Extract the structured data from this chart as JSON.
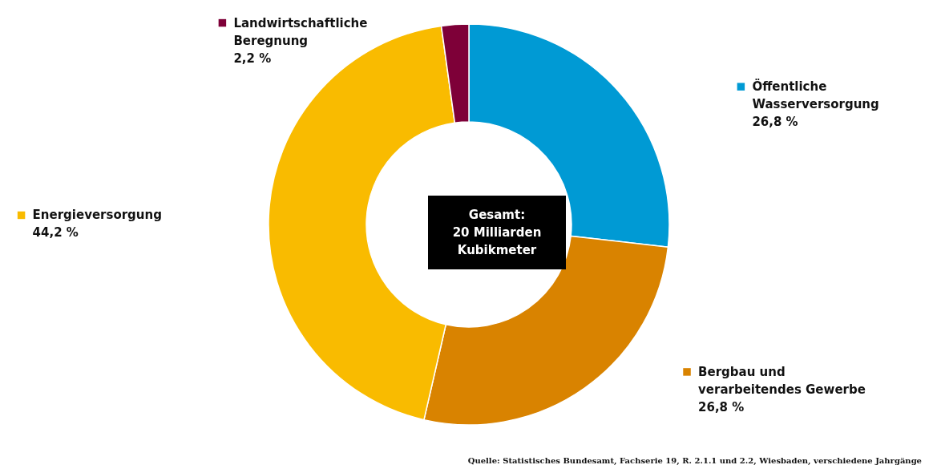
{
  "chart_data": {
    "type": "donut",
    "categories": [
      "Öffentliche Wasserversorgung",
      "Bergbau und verarbeitendes Gewerbe",
      "Energieversorgung",
      "Landwirtschaftliche Beregnung"
    ],
    "values": [
      26.8,
      26.8,
      44.2,
      2.2
    ],
    "colors": [
      "#009ad4",
      "#d98300",
      "#f9bb00",
      "#7e0038"
    ],
    "value_labels": [
      "26,8 %",
      "26,8 %",
      "44,2 %",
      "2,2 %"
    ],
    "annotations": [
      "Gesamt:\n20 Milliarden\nKubikmeter",
      "Quelle: Statistisches Bundesamt, Fachserie 19, R. 2.1.1 und 2.2, Wiesbaden, verschiedene Jahrgänge"
    ],
    "legend": "top"
  }
}
